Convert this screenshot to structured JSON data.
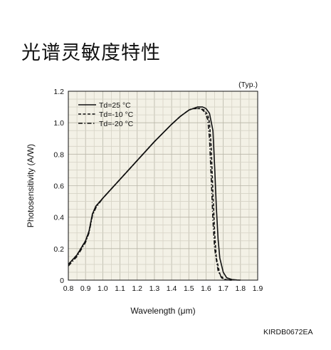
{
  "title": "光谱灵敏度特性",
  "document_code": "KIRDB0672EA",
  "chart_data": {
    "type": "line",
    "title": "",
    "note": "(Typ.)",
    "xlabel": "Wavelength (μm)",
    "ylabel": "Photosensitivity (A/W)",
    "xlim": [
      0.8,
      1.9
    ],
    "ylim": [
      0,
      1.2
    ],
    "x_ticks": [
      "0.8",
      "0.9",
      "1.0",
      "1.1",
      "1.2",
      "1.3",
      "1.4",
      "1.5",
      "1.6",
      "1.7",
      "1.8",
      "1.9"
    ],
    "y_ticks": [
      "0",
      "0.2",
      "0.4",
      "0.6",
      "0.8",
      "1.0",
      "1.2"
    ],
    "grid": true,
    "legend_position": "top-left",
    "series": [
      {
        "name": "Td=25 °C",
        "style": "solid",
        "x": [
          0.8,
          0.85,
          0.9,
          0.92,
          0.94,
          0.96,
          1.0,
          1.1,
          1.2,
          1.3,
          1.4,
          1.45,
          1.5,
          1.55,
          1.58,
          1.6,
          1.62,
          1.64,
          1.65,
          1.66,
          1.67,
          1.68,
          1.7,
          1.72,
          1.75,
          1.78,
          1.8
        ],
        "y": [
          0.1,
          0.16,
          0.25,
          0.31,
          0.42,
          0.47,
          0.52,
          0.64,
          0.76,
          0.88,
          0.99,
          1.04,
          1.08,
          1.1,
          1.1,
          1.09,
          1.06,
          0.95,
          0.72,
          0.46,
          0.26,
          0.14,
          0.05,
          0.015,
          0.004,
          0.001,
          0.0
        ]
      },
      {
        "name": "Td=-10 °C",
        "style": "dashed",
        "x": [
          0.8,
          0.85,
          0.9,
          0.92,
          0.94,
          0.96,
          1.0,
          1.1,
          1.2,
          1.3,
          1.4,
          1.45,
          1.5,
          1.52,
          1.55,
          1.57,
          1.59,
          1.61,
          1.62,
          1.63,
          1.64,
          1.65,
          1.66,
          1.68,
          1.7,
          1.72,
          1.75
        ],
        "y": [
          0.1,
          0.16,
          0.25,
          0.31,
          0.42,
          0.47,
          0.52,
          0.64,
          0.76,
          0.88,
          0.99,
          1.04,
          1.08,
          1.09,
          1.09,
          1.09,
          1.08,
          1.05,
          1.0,
          0.85,
          0.55,
          0.3,
          0.14,
          0.04,
          0.01,
          0.002,
          0.0
        ]
      },
      {
        "name": "Td=-20 °C",
        "style": "dashdot",
        "x": [
          0.8,
          0.85,
          0.9,
          0.92,
          0.94,
          0.96,
          1.0,
          1.1,
          1.2,
          1.3,
          1.4,
          1.45,
          1.5,
          1.52,
          1.55,
          1.57,
          1.59,
          1.6,
          1.61,
          1.62,
          1.63,
          1.64,
          1.65,
          1.67,
          1.69,
          1.71,
          1.75
        ],
        "y": [
          0.09,
          0.15,
          0.24,
          0.3,
          0.41,
          0.46,
          0.52,
          0.64,
          0.76,
          0.88,
          0.99,
          1.04,
          1.08,
          1.09,
          1.09,
          1.09,
          1.07,
          1.05,
          1.02,
          0.9,
          0.65,
          0.38,
          0.2,
          0.06,
          0.015,
          0.003,
          0.0
        ]
      }
    ]
  }
}
